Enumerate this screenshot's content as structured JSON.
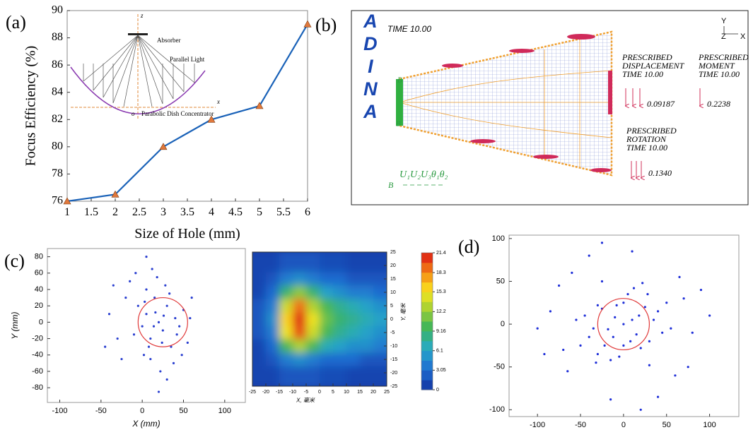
{
  "panel_labels": [
    "(a)",
    "(b)",
    "(c)",
    "(d)"
  ],
  "chart_data": [
    {
      "type": "line",
      "x_label": "Size of Hole (mm)",
      "y_label": "Focus Efficiency (%)",
      "x": [
        1,
        2,
        3,
        4,
        5,
        6
      ],
      "values": [
        76,
        76.5,
        80,
        82,
        83,
        89
      ],
      "color": "#1a62b8",
      "marker_color": "#e0783c",
      "xlim": [
        1,
        6
      ],
      "xticks": [
        1,
        1.5,
        2,
        2.5,
        3,
        3.5,
        4,
        4.5,
        5,
        5.5,
        6
      ],
      "ylim": [
        76,
        90
      ],
      "yticks": [
        76,
        78,
        80,
        82,
        84,
        86,
        88,
        90
      ],
      "inset": {
        "z": "z",
        "absorber": "Absorber",
        "light": "Parallel Light",
        "x": "x",
        "o": "o",
        "dish": "Parabolic Dish Concentrator"
      }
    },
    {
      "type": "scatter",
      "x_label": "X (mm)",
      "y_label": "Y (mm)",
      "color": "#2a3fd0",
      "x": [
        5,
        10,
        15,
        20,
        25,
        30,
        35,
        40,
        45,
        50,
        0,
        5,
        10,
        18,
        22,
        28,
        -5,
        -10,
        -20,
        -30,
        -40,
        55,
        60,
        48,
        12,
        30,
        -15,
        -25,
        3,
        8,
        16,
        24,
        33,
        42,
        2,
        14,
        26,
        38,
        -8,
        20,
        5,
        -45,
        58,
        -35
      ],
      "values": [
        10,
        -20,
        30,
        0,
        -10,
        20,
        -30,
        5,
        -5,
        15,
        -5,
        40,
        -45,
        55,
        -60,
        45,
        20,
        -15,
        30,
        -20,
        10,
        -25,
        30,
        -40,
        65,
        -70,
        50,
        -45,
        25,
        -30,
        12,
        -25,
        35,
        -15,
        -40,
        -5,
        8,
        -50,
        60,
        -85,
        80,
        -30,
        5,
        45
      ],
      "circle": {
        "x": 25,
        "y": 0,
        "r": 30,
        "color": "#e03a3a"
      },
      "xlim": [
        -115,
        125
      ],
      "xticks": [
        -100,
        -50,
        0,
        50,
        100
      ],
      "ylim": [
        -98,
        90
      ],
      "yticks": [
        -80,
        -60,
        -40,
        -20,
        0,
        20,
        40,
        60,
        80
      ]
    },
    {
      "type": "heatmap",
      "x_label": "X, 毫米",
      "y_label": "Y, 毫米",
      "x": [
        -22.5,
        -17.5,
        -12.5,
        -7.5,
        -2.5,
        2.5,
        7.5,
        12.5,
        17.5,
        22.5
      ],
      "y": [
        20,
        15,
        10,
        5,
        0,
        -5,
        -10,
        -15,
        -20
      ],
      "z": [
        [
          1,
          1,
          2,
          2,
          2,
          1.5,
          1.5,
          1,
          1,
          1
        ],
        [
          1,
          2,
          4,
          5,
          4,
          3,
          3,
          2,
          2,
          2
        ],
        [
          1,
          3,
          9,
          12,
          9,
          6,
          5,
          4,
          4,
          3
        ],
        [
          2,
          4,
          14,
          19,
          13,
          10,
          8,
          7,
          6,
          5
        ],
        [
          2,
          5,
          16,
          21,
          15,
          11,
          9,
          8,
          7,
          6
        ],
        [
          2,
          4,
          15,
          20,
          14,
          10,
          8,
          7,
          6,
          5
        ],
        [
          1,
          3,
          10,
          13,
          10,
          7,
          6,
          5,
          5,
          4
        ],
        [
          1,
          2,
          4,
          5,
          4,
          3,
          3,
          3,
          2,
          2
        ],
        [
          1,
          1,
          2,
          2,
          2,
          1.5,
          1.5,
          1,
          1,
          1
        ]
      ],
      "xlim": [
        -25,
        25
      ],
      "xticks": [
        -25,
        -20,
        -15,
        -10,
        -5,
        0,
        5,
        10,
        15,
        20,
        25
      ],
      "ylim": [
        -25,
        25
      ],
      "yticks": [
        -25,
        -20,
        -15,
        -10,
        -5,
        0,
        5,
        10,
        15,
        20,
        25
      ],
      "colorbar": {
        "lim": [
          0,
          21.4
        ],
        "ticks": [
          0,
          3.05,
          6.1,
          9.16,
          12.2,
          15.3,
          18.3,
          21.4
        ]
      }
    },
    {
      "type": "scatter",
      "color": "#1f2fd8",
      "x": [
        0,
        10,
        -10,
        15,
        -18,
        25,
        -25,
        20,
        -22,
        35,
        -35,
        5,
        -5,
        30,
        -30,
        40,
        -40,
        12,
        -15,
        45,
        -45,
        28,
        -30,
        8,
        -8,
        18,
        -12,
        0,
        0,
        50,
        -50,
        22,
        -25,
        30,
        -32,
        55,
        -55,
        70,
        -70,
        60,
        -60,
        80,
        -85,
        10,
        -15,
        65,
        -65,
        90,
        -92,
        40,
        -40,
        100,
        -100,
        75,
        -75,
        20,
        -25
      ],
      "values": [
        0,
        5,
        8,
        -12,
        -6,
        20,
        18,
        -28,
        -25,
        5,
        -5,
        35,
        -38,
        -20,
        22,
        15,
        -15,
        42,
        -42,
        -10,
        10,
        35,
        -35,
        -20,
        22,
        10,
        -15,
        25,
        -25,
        25,
        -25,
        48,
        50,
        -48,
        -45,
        -5,
        5,
        30,
        -30,
        -60,
        60,
        -10,
        15,
        85,
        -88,
        55,
        -55,
        40,
        -35,
        -85,
        80,
        10,
        -5,
        -50,
        45,
        -100,
        95
      ],
      "circle": {
        "x": 0,
        "y": 0,
        "r": 30,
        "color": "#e03a3a"
      },
      "xlim": [
        -133,
        134
      ],
      "xticks": [
        -100,
        -50,
        0,
        50,
        100
      ],
      "ylim": [
        -108,
        104
      ],
      "yticks": [
        -100,
        -50,
        0,
        50,
        100
      ]
    }
  ],
  "diagram": {
    "logo": "ADINA",
    "time": "TIME 10.00",
    "displacement": {
      "lines": [
        "PRESCRIBED",
        "DISPLACEMENT",
        "TIME 10.00"
      ],
      "value": "0.09187"
    },
    "moment": {
      "lines": [
        "PRESCRIBED",
        "MOMENT",
        "TIME 10.00"
      ],
      "value": "0.2238"
    },
    "rotation": {
      "lines": [
        "PRESCRIBED",
        "ROTATION",
        "TIME 10.00"
      ],
      "value": "0.1340"
    },
    "axes": [
      "Y",
      "Z",
      "X"
    ],
    "node_labels": [
      "B",
      "B"
    ],
    "dof": "U₁U₂U₃θ₁θ₂",
    "dof_node": "B"
  }
}
